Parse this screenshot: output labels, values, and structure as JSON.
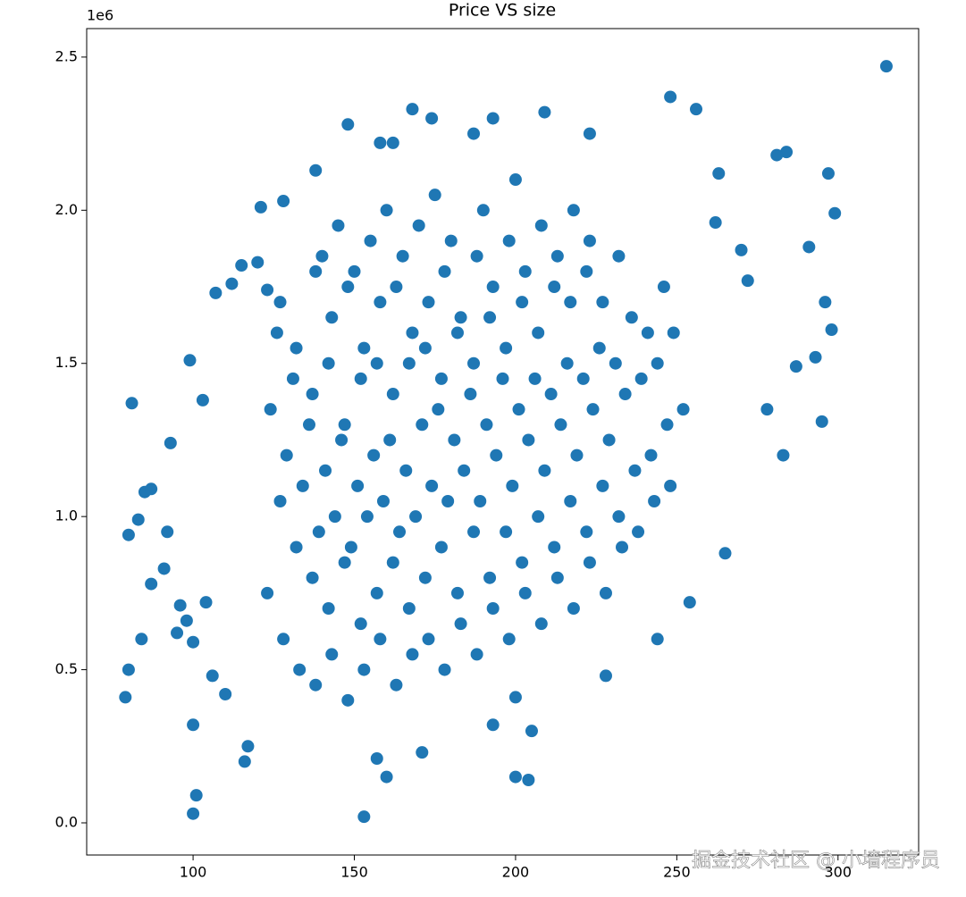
{
  "chart_data": {
    "type": "scatter",
    "title": "Price VS size",
    "color": "#1f77b4",
    "y_offset_label": "1e6",
    "watermark": "掘金技术社区 @ 小墙程序员",
    "xlim": [
      67,
      325
    ],
    "ylim": [
      -105000,
      2593000
    ],
    "xticks": [
      100,
      150,
      200,
      250,
      300
    ],
    "yticks": [
      {
        "value": 0,
        "label": "0.0"
      },
      {
        "value": 500000,
        "label": "0.5"
      },
      {
        "value": 1000000,
        "label": "1.0"
      },
      {
        "value": 1500000,
        "label": "1.5"
      },
      {
        "value": 2000000,
        "label": "2.0"
      },
      {
        "value": 2500000,
        "label": "2.5"
      }
    ],
    "x": [
      315,
      79,
      80,
      80,
      81,
      84,
      100,
      101,
      153,
      200,
      204,
      99,
      93,
      148,
      168,
      174,
      193,
      209,
      248,
      256,
      223,
      297,
      299,
      291,
      284,
      281,
      263,
      121,
      128,
      138,
      158,
      162,
      187,
      254,
      244,
      228,
      265,
      283,
      295,
      296,
      298,
      293,
      287,
      278,
      262,
      270,
      272,
      100,
      116,
      110,
      117,
      157,
      160,
      171,
      205,
      193,
      200,
      85,
      87,
      83,
      91,
      92,
      95,
      98,
      100,
      104,
      106,
      103,
      107,
      112,
      115,
      120,
      123,
      96,
      87,
      123,
      127,
      124,
      126,
      128,
      132,
      129,
      131,
      127,
      133,
      137,
      134,
      136,
      132,
      138,
      138,
      142,
      139,
      141,
      137,
      143,
      140,
      143,
      147,
      144,
      146,
      142,
      148,
      145,
      148,
      152,
      149,
      151,
      147,
      153,
      150,
      153,
      157,
      154,
      156,
      152,
      158,
      155,
      158,
      162,
      159,
      161,
      157,
      163,
      160,
      163,
      167,
      164,
      166,
      162,
      168,
      165,
      168,
      172,
      169,
      171,
      167,
      173,
      170,
      173,
      177,
      174,
      176,
      172,
      178,
      175,
      178,
      182,
      179,
      181,
      177,
      183,
      180,
      183,
      187,
      184,
      186,
      182,
      188,
      188,
      192,
      189,
      191,
      187,
      193,
      190,
      193,
      197,
      194,
      196,
      192,
      198,
      198,
      202,
      199,
      201,
      197,
      203,
      200,
      203,
      207,
      204,
      206,
      202,
      208,
      208,
      212,
      209,
      211,
      207,
      213,
      213,
      217,
      214,
      216,
      212,
      218,
      218,
      222,
      219,
      221,
      217,
      223,
      223,
      227,
      224,
      226,
      222,
      228,
      232,
      229,
      231,
      227,
      233,
      237,
      234,
      236,
      232,
      238,
      242,
      239,
      241,
      243,
      247,
      244,
      246,
      248,
      252,
      249
    ],
    "values": [
      2470000,
      410000,
      500000,
      940000,
      1370000,
      600000,
      30000,
      90000,
      20000,
      150000,
      140000,
      1510000,
      1240000,
      2280000,
      2330000,
      2300000,
      2300000,
      2320000,
      2370000,
      2330000,
      2250000,
      2120000,
      1990000,
      1880000,
      2190000,
      2180000,
      2120000,
      2010000,
      2030000,
      2130000,
      2220000,
      2220000,
      2250000,
      720000,
      600000,
      480000,
      880000,
      1200000,
      1310000,
      1700000,
      1610000,
      1520000,
      1490000,
      1350000,
      1960000,
      1870000,
      1770000,
      320000,
      200000,
      420000,
      250000,
      210000,
      150000,
      230000,
      300000,
      320000,
      410000,
      1080000,
      1090000,
      990000,
      830000,
      950000,
      620000,
      660000,
      590000,
      720000,
      480000,
      1380000,
      1730000,
      1760000,
      1820000,
      1830000,
      1740000,
      710000,
      780000,
      750000,
      1050000,
      1350000,
      1600000,
      600000,
      900000,
      1200000,
      1450000,
      1700000,
      500000,
      800000,
      1100000,
      1300000,
      1550000,
      1800000,
      450000,
      700000,
      950000,
      1150000,
      1400000,
      1650000,
      1850000,
      550000,
      850000,
      1000000,
      1250000,
      1500000,
      1750000,
      1950000,
      400000,
      650000,
      900000,
      1100000,
      1300000,
      1550000,
      1800000,
      500000,
      750000,
      1000000,
      1200000,
      1450000,
      1700000,
      1900000,
      600000,
      850000,
      1050000,
      1250000,
      1500000,
      1750000,
      2000000,
      450000,
      700000,
      950000,
      1150000,
      1400000,
      1600000,
      1850000,
      550000,
      800000,
      1000000,
      1300000,
      1500000,
      1700000,
      1950000,
      600000,
      900000,
      1100000,
      1350000,
      1550000,
      1800000,
      2050000,
      500000,
      750000,
      1050000,
      1250000,
      1450000,
      1650000,
      1900000,
      650000,
      950000,
      1150000,
      1400000,
      1600000,
      1850000,
      550000,
      800000,
      1050000,
      1300000,
      1500000,
      1750000,
      2000000,
      700000,
      950000,
      1200000,
      1450000,
      1650000,
      1900000,
      600000,
      850000,
      1100000,
      1350000,
      1550000,
      1800000,
      2100000,
      750000,
      1000000,
      1250000,
      1450000,
      1700000,
      1950000,
      650000,
      900000,
      1150000,
      1400000,
      1600000,
      1850000,
      800000,
      1050000,
      1300000,
      1500000,
      1750000,
      2000000,
      700000,
      950000,
      1200000,
      1450000,
      1700000,
      1900000,
      850000,
      1100000,
      1350000,
      1550000,
      1800000,
      750000,
      1000000,
      1250000,
      1500000,
      1700000,
      900000,
      1150000,
      1400000,
      1650000,
      1850000,
      950000,
      1200000,
      1450000,
      1600000,
      1050000,
      1300000,
      1500000,
      1750000,
      1100000,
      1350000,
      1600000
    ]
  }
}
